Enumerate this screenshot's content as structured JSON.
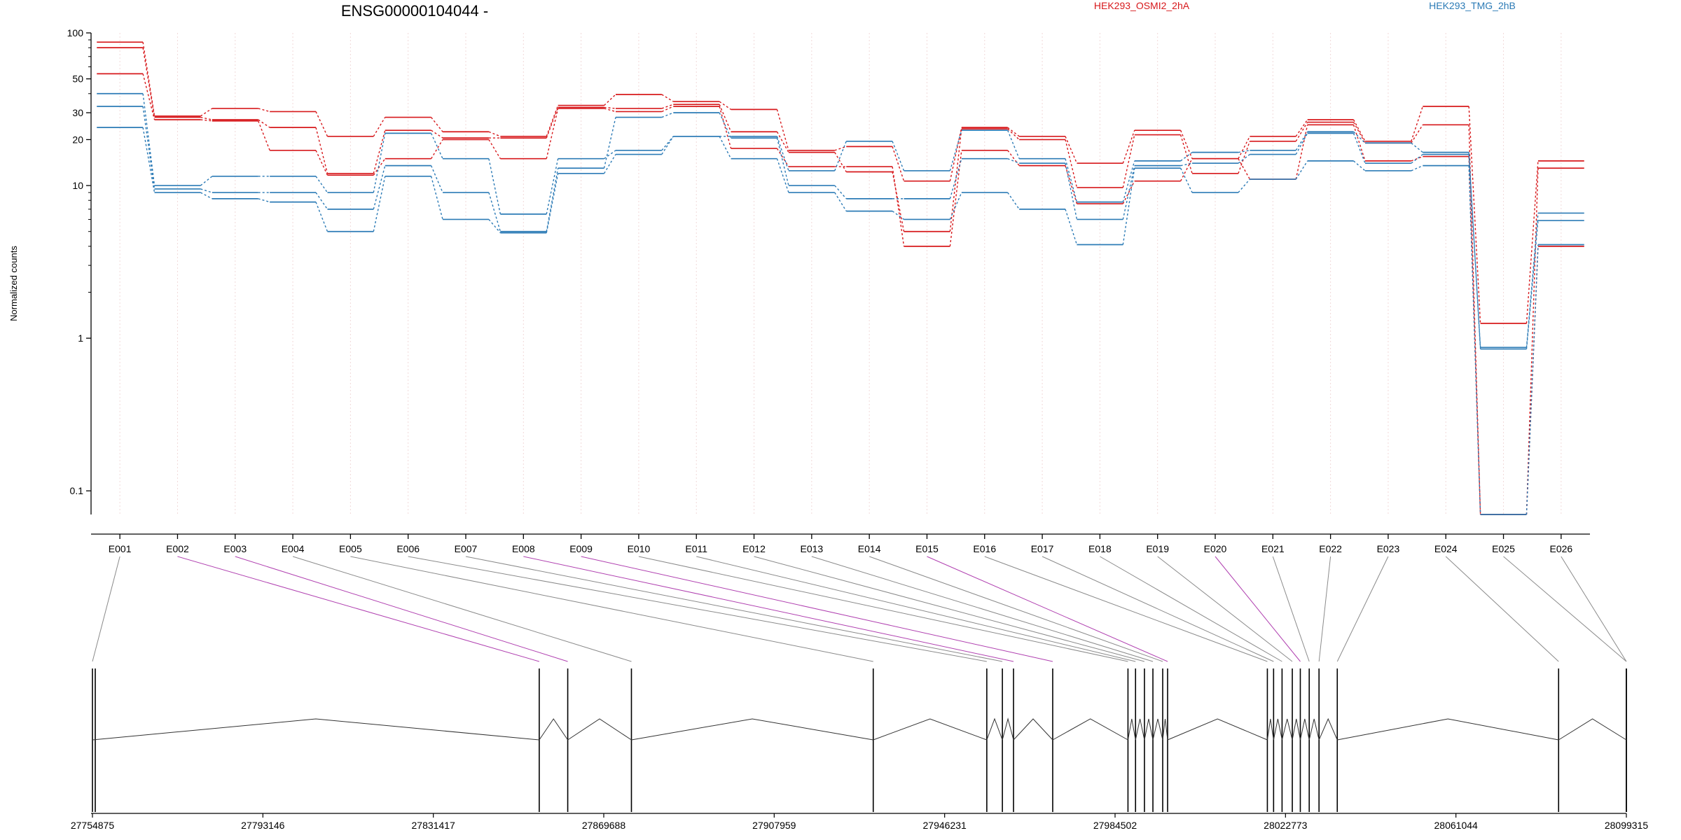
{
  "chart_data": {
    "type": "line",
    "title": "ENSG00000104044 -",
    "ylabel": "Normalized counts",
    "yscale": "log",
    "ylim": [
      0.07,
      100
    ],
    "y_ticks": [
      0.1,
      1,
      10,
      20,
      30,
      50,
      100
    ],
    "y_tick_labels": [
      "0.1",
      "1",
      "10",
      "20",
      "30",
      "50",
      "100"
    ],
    "grid": "vertical dotted at each exon",
    "legend_placement": "top",
    "categories": [
      "E001",
      "E002",
      "E003",
      "E004",
      "E005",
      "E006",
      "E007",
      "E008",
      "E009",
      "E010",
      "E011",
      "E012",
      "E013",
      "E014",
      "E015",
      "E016",
      "E017",
      "E018",
      "E019",
      "E020",
      "E021",
      "E022",
      "E023",
      "E024",
      "E025",
      "E026"
    ],
    "conditions": [
      {
        "name": "HEK293_OSMI2_2hA",
        "color": "#d7191c"
      },
      {
        "name": "HEK293_TMG_2hB",
        "color": "#2c7bb6"
      }
    ],
    "series": [
      {
        "condition": 0,
        "values": [
          87,
          28.5,
          32,
          30.5,
          21,
          28,
          22.5,
          21,
          33.5,
          39.5,
          35.5,
          31.5,
          17,
          18,
          10.7,
          24,
          21,
          14,
          23,
          15,
          21,
          27,
          19.5,
          33,
          1.25,
          14.5
        ]
      },
      {
        "condition": 0,
        "values": [
          80,
          28,
          27,
          24,
          12,
          23,
          20.5,
          20.5,
          32.5,
          32,
          34,
          22.5,
          16.5,
          12.3,
          5.0,
          23.5,
          20,
          9.7,
          21.5,
          12,
          19.5,
          26,
          19,
          25,
          0.07,
          13
        ]
      },
      {
        "condition": 0,
        "values": [
          54,
          27,
          26.5,
          17,
          11.7,
          15,
          20,
          15,
          32,
          30.5,
          33,
          17.5,
          13.3,
          13.3,
          4.0,
          17,
          13.5,
          7.6,
          10.7,
          15,
          11,
          25,
          14.5,
          15.5,
          0.07,
          4.0
        ]
      },
      {
        "condition": 1,
        "values": [
          40,
          10,
          11.5,
          11.5,
          9,
          22,
          15,
          6.5,
          15,
          17,
          21,
          21,
          12.5,
          19.5,
          12.5,
          23,
          15,
          7.8,
          14.5,
          16.5,
          17,
          22.5,
          19,
          16.5,
          0.87,
          6.6
        ]
      },
      {
        "condition": 1,
        "values": [
          33,
          9.5,
          9,
          9,
          7,
          13.5,
          9,
          5.0,
          13,
          28,
          30,
          20.5,
          10,
          8.2,
          8.2,
          15,
          14,
          6.0,
          13.5,
          14,
          16,
          22,
          14,
          16,
          0.85,
          5.9
        ]
      },
      {
        "condition": 1,
        "values": [
          24,
          9,
          8.2,
          7.8,
          5.0,
          11.5,
          6.0,
          4.9,
          12,
          16,
          21,
          15,
          9,
          6.8,
          6.0,
          9,
          7,
          4.1,
          13,
          9,
          11,
          14.5,
          12.5,
          13.5,
          0.07,
          4.1
        ]
      }
    ],
    "genome_coordinates": [
      "27754875",
      "27793146",
      "27831417",
      "27869688",
      "27907959",
      "27946231",
      "27984502",
      "28022773",
      "28061044",
      "28099315"
    ],
    "exon_highlighted": [
      false,
      true,
      true,
      false,
      false,
      false,
      false,
      true,
      true,
      false,
      false,
      false,
      false,
      false,
      true,
      false,
      false,
      false,
      false,
      true,
      false,
      false,
      false,
      false,
      false,
      false
    ]
  }
}
